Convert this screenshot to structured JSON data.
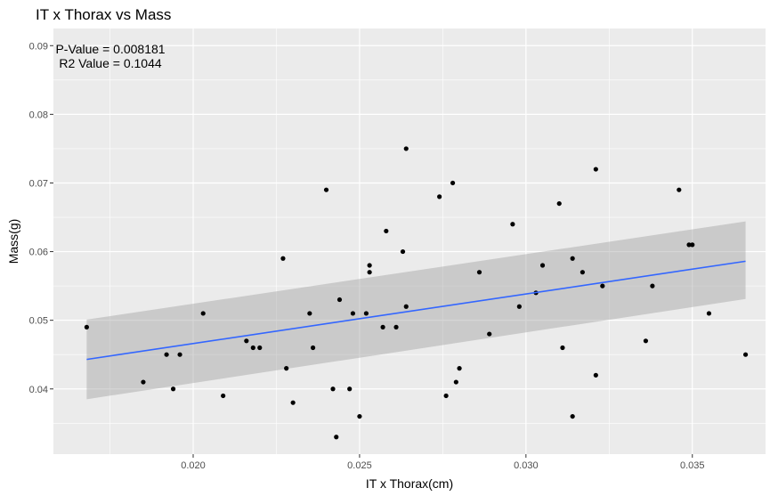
{
  "chart_data": {
    "type": "scatter",
    "title": "IT x Thorax vs Mass",
    "xlabel": "IT x Thorax(cm)",
    "ylabel": "Mass(g)",
    "xlim": [
      0.0158,
      0.0372
    ],
    "ylim": [
      0.0305,
      0.0925
    ],
    "x_ticks": [
      0.02,
      0.025,
      0.03,
      0.035
    ],
    "x_tick_labels": [
      "0.020",
      "0.025",
      "0.030",
      "0.035"
    ],
    "y_ticks": [
      0.04,
      0.05,
      0.06,
      0.07,
      0.08,
      0.09
    ],
    "y_tick_labels": [
      "0.04",
      "0.05",
      "0.06",
      "0.07",
      "0.08",
      "0.09"
    ],
    "grid": true,
    "annotations": [
      "P-Value = 0.008181",
      "R2 Value = 0.1044"
    ],
    "regression": {
      "method": "lm",
      "x": [
        0.0168,
        0.0366
      ],
      "y": [
        0.0443,
        0.0586
      ],
      "ci_lower": [
        0.0385,
        0.0531
      ],
      "ci_upper": [
        0.0501,
        0.0644
      ],
      "line_color": "#3366ff",
      "band_color": "#999999"
    },
    "points_color": "#000000",
    "points": [
      [
        0.0168,
        0.049
      ],
      [
        0.0185,
        0.041
      ],
      [
        0.0192,
        0.045
      ],
      [
        0.0194,
        0.04
      ],
      [
        0.0196,
        0.045
      ],
      [
        0.0203,
        0.051
      ],
      [
        0.0209,
        0.039
      ],
      [
        0.0216,
        0.047
      ],
      [
        0.0218,
        0.046
      ],
      [
        0.022,
        0.046
      ],
      [
        0.0227,
        0.059
      ],
      [
        0.0228,
        0.043
      ],
      [
        0.023,
        0.038
      ],
      [
        0.0235,
        0.051
      ],
      [
        0.0236,
        0.046
      ],
      [
        0.024,
        0.069
      ],
      [
        0.0242,
        0.04
      ],
      [
        0.0243,
        0.033
      ],
      [
        0.0244,
        0.053
      ],
      [
        0.0247,
        0.04
      ],
      [
        0.0248,
        0.051
      ],
      [
        0.025,
        0.036
      ],
      [
        0.0252,
        0.051
      ],
      [
        0.0253,
        0.058
      ],
      [
        0.0253,
        0.057
      ],
      [
        0.0257,
        0.049
      ],
      [
        0.0258,
        0.063
      ],
      [
        0.0261,
        0.049
      ],
      [
        0.0263,
        0.06
      ],
      [
        0.0264,
        0.075
      ],
      [
        0.0264,
        0.052
      ],
      [
        0.0274,
        0.068
      ],
      [
        0.0276,
        0.039
      ],
      [
        0.0278,
        0.07
      ],
      [
        0.0279,
        0.041
      ],
      [
        0.028,
        0.043
      ],
      [
        0.0286,
        0.057
      ],
      [
        0.0289,
        0.048
      ],
      [
        0.0296,
        0.064
      ],
      [
        0.0298,
        0.052
      ],
      [
        0.0303,
        0.054
      ],
      [
        0.0305,
        0.058
      ],
      [
        0.031,
        0.067
      ],
      [
        0.0311,
        0.046
      ],
      [
        0.0314,
        0.059
      ],
      [
        0.0314,
        0.036
      ],
      [
        0.0317,
        0.057
      ],
      [
        0.0321,
        0.072
      ],
      [
        0.0321,
        0.042
      ],
      [
        0.0323,
        0.055
      ],
      [
        0.0336,
        0.047
      ],
      [
        0.0338,
        0.055
      ],
      [
        0.0346,
        0.069
      ],
      [
        0.0349,
        0.061
      ],
      [
        0.035,
        0.061
      ],
      [
        0.0355,
        0.051
      ],
      [
        0.0366,
        0.045
      ]
    ]
  }
}
